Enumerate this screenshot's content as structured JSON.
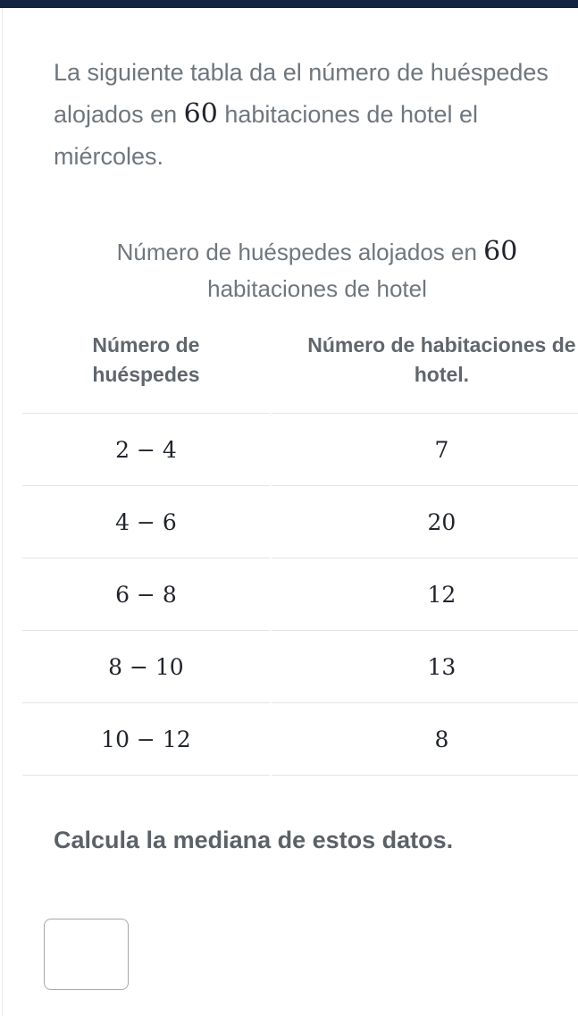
{
  "colors": {
    "navy": "#132441",
    "body-gray": "#6f767d",
    "header-gray": "#60666c",
    "question-gray": "#5b6167",
    "math-ink": "#21242c",
    "rule": "#e5e5e5",
    "input-border": "#a7a7a7"
  },
  "problem": {
    "intro": {
      "pre": "La siguiente tabla da el número de huéspedes alojados en ",
      "math": "60",
      "post": " habitaciones de hotel el miércoles."
    },
    "table": {
      "title": {
        "pre": "Número de huéspedes alojados en ",
        "math": "60",
        "post": " habitaciones de hotel"
      },
      "headers": {
        "col1": "Número de huéspedes",
        "col2": "Número de habitaciones de hotel."
      },
      "rows": [
        {
          "range": "2 − 4",
          "count": "7"
        },
        {
          "range": "4 − 6",
          "count": "20"
        },
        {
          "range": "6 − 8",
          "count": "12"
        },
        {
          "range": "8 − 10",
          "count": "13"
        },
        {
          "range": "10 − 12",
          "count": "8"
        }
      ]
    },
    "question": "Calcula la mediana de estos datos.",
    "answer_input": {
      "value": "",
      "placeholder": ""
    }
  }
}
